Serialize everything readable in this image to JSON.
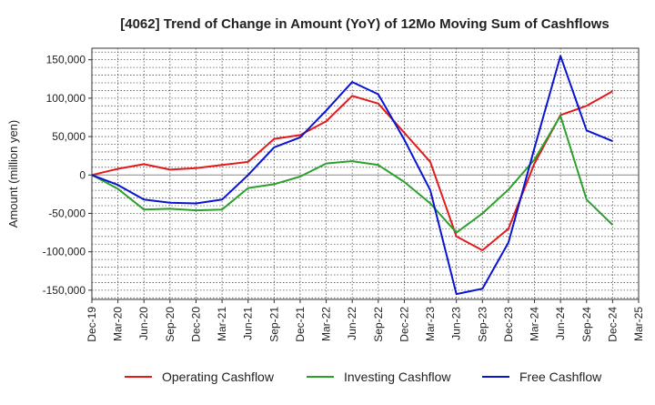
{
  "chart_data": {
    "type": "line",
    "title": "[4062]  Trend of Change in Amount (YoY) of 12Mo Moving Sum of Cashflows",
    "xlabel": "",
    "ylabel": "Amount (million yen)",
    "ylim": [
      -162000,
      165000
    ],
    "yticks": [
      150000,
      100000,
      50000,
      0,
      -50000,
      -100000,
      -150000
    ],
    "ytick_labels": [
      "150,000",
      "100,000",
      "50,000",
      "0",
      "-50,000",
      "-100,000",
      "-150,000"
    ],
    "categories": [
      "Dec-19",
      "Mar-20",
      "Jun-20",
      "Sep-20",
      "Dec-20",
      "Mar-21",
      "Jun-21",
      "Sep-21",
      "Dec-21",
      "Mar-22",
      "Jun-22",
      "Sep-22",
      "Dec-22",
      "Mar-23",
      "Jun-23",
      "Sep-23",
      "Dec-23",
      "Mar-24",
      "Jun-24",
      "Sep-24",
      "Dec-24",
      "Mar-25"
    ],
    "grid": true,
    "legend_position": "bottom",
    "series": [
      {
        "name": "Operating Cashflow",
        "color": "#e31a1c",
        "values": [
          0,
          8000,
          14000,
          7000,
          9000,
          13000,
          17000,
          47000,
          52000,
          70000,
          103000,
          93000,
          55000,
          17000,
          -80000,
          -98000,
          -70000,
          15000,
          78000,
          90000,
          109000,
          null
        ]
      },
      {
        "name": "Investing Cashflow",
        "color": "#2ca02c",
        "values": [
          0,
          -18000,
          -45000,
          -44000,
          -46000,
          -45000,
          -17000,
          -12000,
          -2000,
          15000,
          18000,
          13000,
          -9000,
          -37000,
          -75000,
          -50000,
          -19000,
          20000,
          77000,
          -32000,
          -65000,
          null
        ]
      },
      {
        "name": "Free Cashflow",
        "color": "#0a14d0",
        "values": [
          0,
          -13000,
          -32000,
          -36000,
          -37000,
          -32000,
          0,
          36000,
          49000,
          84000,
          121000,
          105000,
          46000,
          -20000,
          -155000,
          -148000,
          -88000,
          35000,
          155000,
          58000,
          44000,
          null
        ]
      }
    ]
  }
}
